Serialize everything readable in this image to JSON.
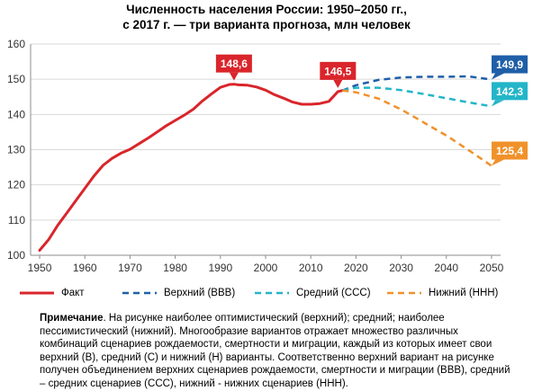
{
  "title": {
    "line1": "Численность населения России: 1950–2050 гг.,",
    "line2": "с 2017 г. — три варианта прогноза, млн человек"
  },
  "colors": {
    "fact": "#d9252b",
    "high": "#1f5fa8",
    "mid": "#24b5c9",
    "low": "#f0922b",
    "grid": "#d9d9d9",
    "axis": "#8c8c8c"
  },
  "chart_data": {
    "type": "line",
    "xlim": [
      1948,
      2052
    ],
    "ylim": [
      100,
      160
    ],
    "x_ticks": [
      1950,
      1960,
      1970,
      1980,
      1990,
      2000,
      2010,
      2020,
      2030,
      2040,
      2050
    ],
    "y_ticks": [
      100,
      110,
      120,
      130,
      140,
      150,
      160
    ],
    "grid": "horizontal",
    "legend_position": "bottom",
    "series": [
      {
        "name": "Факт",
        "key": "fact",
        "style": "solid",
        "x": [
          1950,
          1952,
          1954,
          1956,
          1958,
          1960,
          1962,
          1964,
          1966,
          1968,
          1970,
          1972,
          1974,
          1976,
          1978,
          1980,
          1982,
          1984,
          1986,
          1988,
          1990,
          1992,
          1993,
          1994,
          1996,
          1998,
          2000,
          2002,
          2004,
          2006,
          2008,
          2010,
          2012,
          2014,
          2016,
          2017
        ],
        "y": [
          101.4,
          104.5,
          108.5,
          112.0,
          115.5,
          119.0,
          122.5,
          125.5,
          127.5,
          129.0,
          130.1,
          131.7,
          133.3,
          135.0,
          136.8,
          138.3,
          139.8,
          141.5,
          143.8,
          145.8,
          147.7,
          148.5,
          148.6,
          148.4,
          148.3,
          147.8,
          146.9,
          145.6,
          144.6,
          143.5,
          142.9,
          142.9,
          143.1,
          143.7,
          146.5,
          146.8
        ]
      },
      {
        "name": "Верхний (ВВВ)",
        "key": "high",
        "style": "dashed",
        "x": [
          2017,
          2020,
          2025,
          2030,
          2035,
          2040,
          2045,
          2050
        ],
        "y": [
          146.8,
          148.3,
          149.8,
          150.5,
          150.7,
          150.7,
          150.8,
          149.9
        ]
      },
      {
        "name": "Средний (ССС)",
        "key": "mid",
        "style": "dashed",
        "x": [
          2017,
          2020,
          2025,
          2030,
          2035,
          2040,
          2045,
          2050
        ],
        "y": [
          146.8,
          147.6,
          147.6,
          146.9,
          145.8,
          144.6,
          143.4,
          142.3
        ]
      },
      {
        "name": "Нижний (ННН)",
        "key": "low",
        "style": "dashed",
        "x": [
          2017,
          2020,
          2025,
          2030,
          2035,
          2040,
          2045,
          2050
        ],
        "y": [
          146.8,
          146.3,
          144.5,
          141.4,
          137.7,
          134.0,
          129.8,
          125.4
        ]
      }
    ],
    "annotations": [
      {
        "text": "148,6",
        "x": 1993,
        "y": 148.6,
        "color_key": "fact"
      },
      {
        "text": "146,5",
        "x": 2016,
        "y": 146.5,
        "color_key": "fact"
      },
      {
        "text": "149,9",
        "x": 2050,
        "y": 149.9,
        "color_key": "high"
      },
      {
        "text": "142,3",
        "x": 2050,
        "y": 142.3,
        "color_key": "mid"
      },
      {
        "text": "125,4",
        "x": 2050,
        "y": 125.4,
        "color_key": "low"
      }
    ]
  },
  "legend": [
    {
      "label": "Факт",
      "color_key": "fact",
      "style": "solid"
    },
    {
      "label": "Верхний (ВВВ)",
      "color_key": "high",
      "style": "dashed"
    },
    {
      "label": "Средний (ССС)",
      "color_key": "mid",
      "style": "dashed"
    },
    {
      "label": "Нижний (ННН)",
      "color_key": "low",
      "style": "dashed"
    }
  ],
  "note": {
    "heading": "Примечание",
    "text": ". На рисунке наиболее оптимистический (верхний); средний; наиболее пессимистический (нижний). Многообразие вариантов отражает множество различных комбинаций сценариев рождаемости, смертности и миграции, каждый из которых имеет свои верхний (В), средний (С) и нижний (Н) варианты. Соответственно верхний вариант на рисунке получен объединением верхних сценариев рождаемости, смертности и миграции (ВВВ), средний – средних сценариев (ССС), нижний - нижних сценариев (ННН)."
  }
}
